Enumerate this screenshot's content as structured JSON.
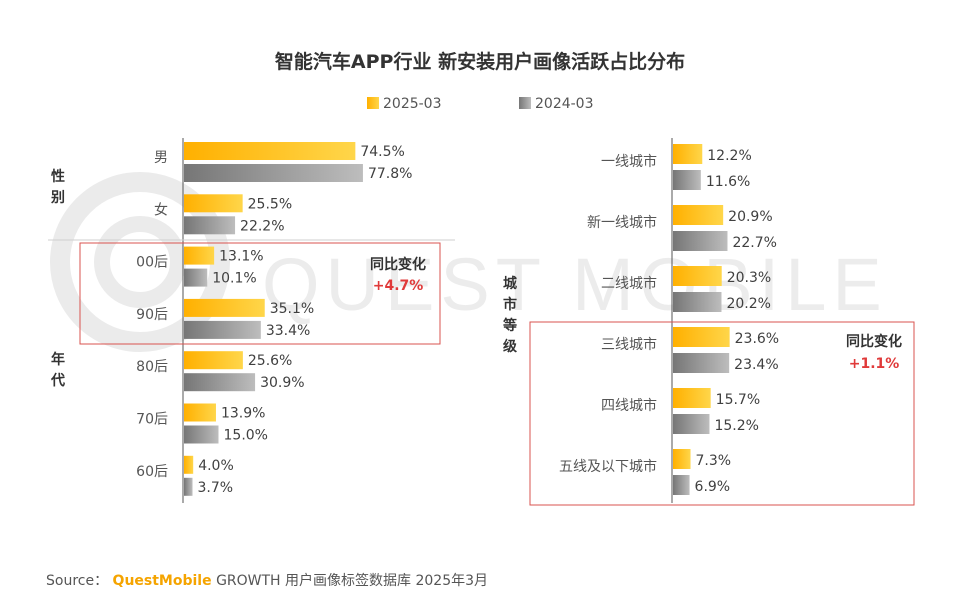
{
  "title": "智能汽车APP行业 新安装用户画像活跃占比分布",
  "legend": [
    "2025-03",
    "2024-03"
  ],
  "colors": {
    "y2025": "#ffc000",
    "y2024": "#8c8c8c",
    "highlight": "#e03a3a",
    "watermark": "#e9e9e9"
  },
  "watermark_text": "QUEST MOBILE",
  "left_panel": {
    "groups": [
      {
        "label": "性别",
        "indices": [
          0,
          1
        ]
      },
      {
        "label": "年代",
        "indices": [
          2,
          3,
          4,
          5,
          6
        ]
      }
    ],
    "highlight": {
      "title": "同比变化",
      "value": "+4.7%",
      "indices": [
        2,
        3
      ]
    }
  },
  "right_panel": {
    "group_label": "城市等级",
    "highlight": {
      "title": "同比变化",
      "value": "+1.1%",
      "indices": [
        3,
        4,
        5
      ]
    }
  },
  "chart_data": [
    {
      "type": "bar",
      "orientation": "horizontal",
      "categories": [
        "男",
        "女",
        "00后",
        "90后",
        "80后",
        "70后",
        "60后"
      ],
      "series": [
        {
          "name": "2025-03",
          "values": [
            74.5,
            25.5,
            13.1,
            35.1,
            25.6,
            13.9,
            4.0
          ],
          "labels": [
            "74.5%",
            "25.5%",
            "13.1%",
            "35.1%",
            "25.6%",
            "13.9%",
            "4.0%"
          ]
        },
        {
          "name": "2024-03",
          "values": [
            77.8,
            22.2,
            10.1,
            33.4,
            30.9,
            15.0,
            3.7
          ],
          "labels": [
            "77.8%",
            "22.2%",
            "10.1%",
            "33.4%",
            "30.9%",
            "15.0%",
            "3.7%"
          ]
        }
      ],
      "xlim": [
        0,
        100
      ],
      "grid": false
    },
    {
      "type": "bar",
      "orientation": "horizontal",
      "categories": [
        "一线城市",
        "新一线城市",
        "二线城市",
        "三线城市",
        "四线城市",
        "五线及以下城市"
      ],
      "series": [
        {
          "name": "2025-03",
          "values": [
            12.2,
            20.9,
            20.3,
            23.6,
            15.7,
            7.3
          ],
          "labels": [
            "12.2%",
            "20.9%",
            "20.3%",
            "23.6%",
            "15.7%",
            "7.3%"
          ]
        },
        {
          "name": "2024-03",
          "values": [
            11.6,
            22.7,
            20.2,
            23.4,
            15.2,
            6.9
          ],
          "labels": [
            "11.6%",
            "22.7%",
            "20.2%",
            "23.4%",
            "15.2%",
            "6.9%"
          ]
        }
      ],
      "xlim": [
        0,
        100
      ],
      "grid": false
    }
  ],
  "source": {
    "prefix": "Source：",
    "brand": "QuestMobile",
    "suffix": "GROWTH 用户画像标签数据库 2025年3月"
  }
}
